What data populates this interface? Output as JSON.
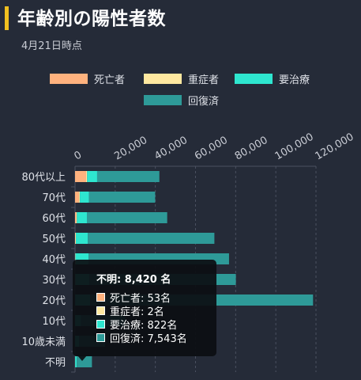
{
  "header": {
    "title": "年齢別の陽性者数",
    "date": "4月21日時点"
  },
  "colors": {
    "background": "#252b38",
    "accent": "#f0c020",
    "deaths": "#ffb27e",
    "severe": "#ffe8a0",
    "treatment": "#2ee6cf",
    "recovered": "#2e9a98",
    "grid": "#4a5060"
  },
  "chart_data": {
    "type": "bar",
    "orientation": "horizontal",
    "stacked": true,
    "categories": [
      "80代以上",
      "70代",
      "60代",
      "50代",
      "40代",
      "30代",
      "20代",
      "10代",
      "10歳未満",
      "不明"
    ],
    "series": [
      {
        "name": "死亡者",
        "values": [
          5500,
          2000,
          600,
          200,
          100,
          50,
          20,
          5,
          2,
          53
        ]
      },
      {
        "name": "重症者",
        "values": [
          500,
          400,
          300,
          200,
          100,
          50,
          20,
          5,
          2,
          2
        ]
      },
      {
        "name": "要治療",
        "values": [
          5000,
          4500,
          5000,
          6000,
          6500,
          7000,
          7500,
          3000,
          2000,
          822
        ]
      },
      {
        "name": "回復済",
        "values": [
          31000,
          33000,
          40000,
          63000,
          70000,
          73000,
          111000,
          22000,
          13000,
          7543
        ]
      }
    ],
    "xlim": [
      0,
      120000
    ],
    "xticks": [
      0,
      20000,
      40000,
      60000,
      80000,
      100000,
      120000
    ],
    "xtick_labels": [
      "0",
      "20,000",
      "40,000",
      "60,000",
      "80,000",
      "100,000",
      "120,000"
    ],
    "x_axis_position": "top",
    "grid": true,
    "legend_position": "top"
  },
  "tooltip": {
    "title": "不明: 8,420 名",
    "rows": [
      "死亡者: 53名",
      "重症者: 2名",
      "要治療: 822名",
      "回復済: 7,543名"
    ]
  }
}
